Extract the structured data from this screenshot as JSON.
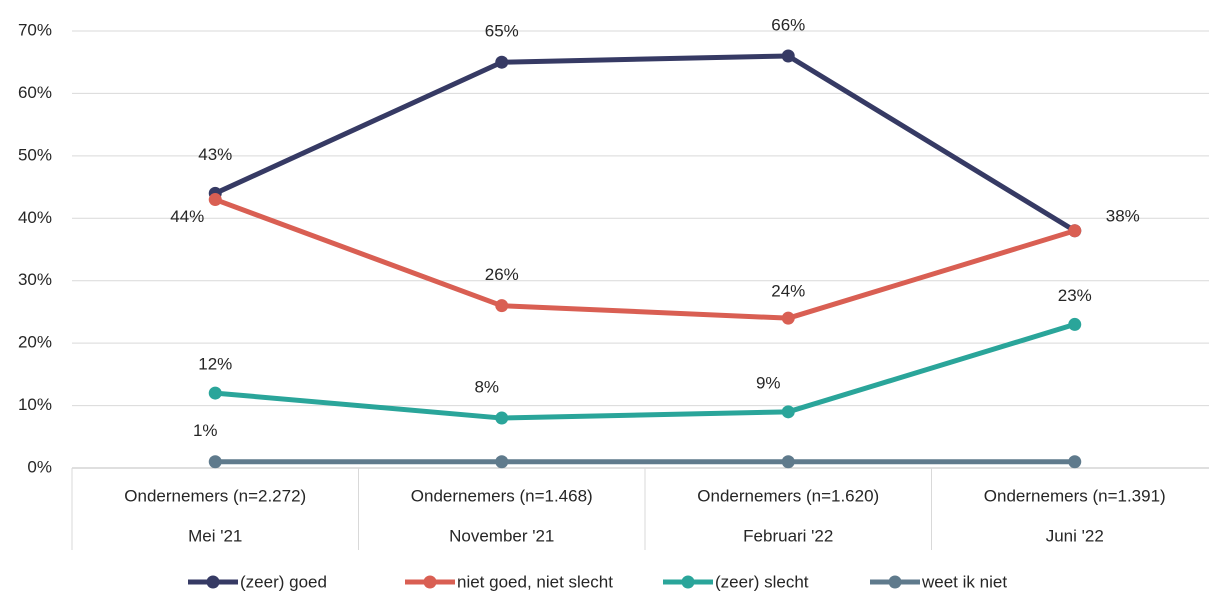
{
  "chart_data": {
    "type": "line",
    "categories": [
      "Ondernemers (n=2.272)",
      "Ondernemers (n=1.468)",
      "Ondernemers (n=1.620)",
      "Ondernemers (n=1.391)"
    ],
    "periods": [
      "Mei '21",
      "November '21",
      "Februari '22",
      "Juni '22"
    ],
    "series": [
      {
        "name": "(zeer) goed",
        "color": "#363a64",
        "values": [
          44,
          65,
          66,
          38
        ],
        "value_labels": [
          "44%",
          "65%",
          "66%",
          "38%"
        ]
      },
      {
        "name": "niet goed, niet slecht",
        "color": "#d95f53",
        "values": [
          43,
          26,
          24,
          38
        ],
        "value_labels": [
          "43%",
          "26%",
          "24%",
          null
        ]
      },
      {
        "name": "(zeer) slecht",
        "color": "#2aa59a",
        "values": [
          12,
          8,
          9,
          23
        ],
        "value_labels": [
          "12%",
          "8%",
          "9%",
          "23%"
        ]
      },
      {
        "name": "weet ik niet",
        "color": "#5f7a8c",
        "values": [
          1,
          1,
          1,
          1
        ],
        "value_labels": [
          "1%",
          null,
          null,
          null
        ]
      }
    ],
    "ylim": [
      0,
      70
    ],
    "yticks": [
      {
        "value": 0,
        "label": "0%"
      },
      {
        "value": 10,
        "label": "10%"
      },
      {
        "value": 20,
        "label": "20%"
      },
      {
        "value": 30,
        "label": "30%"
      },
      {
        "value": 40,
        "label": "40%"
      },
      {
        "value": 50,
        "label": "50%"
      },
      {
        "value": 60,
        "label": "60%"
      },
      {
        "value": 70,
        "label": "70%"
      }
    ],
    "grid": true,
    "legend": "bottom"
  }
}
